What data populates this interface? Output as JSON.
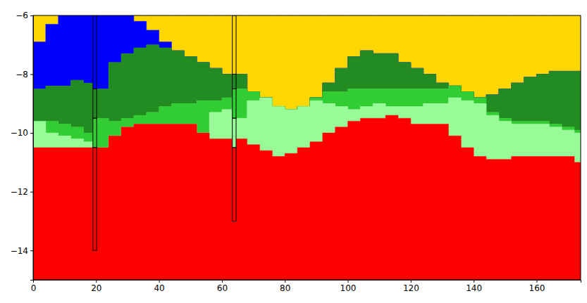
{
  "chart_data": {
    "type": "area",
    "xlim": [
      0,
      174
    ],
    "ylim": [
      -15,
      -6
    ],
    "xticks": [
      0,
      20,
      40,
      60,
      80,
      100,
      120,
      140,
      160
    ],
    "yticks": [
      {
        "value": -14,
        "label": "−14"
      },
      {
        "value": -12,
        "label": "−12"
      },
      {
        "value": -10,
        "label": "−10"
      },
      {
        "value": -8,
        "label": "−8"
      },
      {
        "value": -6,
        "label": "−6"
      }
    ],
    "x": [
      0,
      4,
      8,
      12,
      16,
      20,
      24,
      28,
      32,
      36,
      40,
      44,
      48,
      52,
      56,
      60,
      64,
      68,
      72,
      76,
      80,
      84,
      88,
      92,
      96,
      100,
      104,
      108,
      112,
      116,
      120,
      124,
      128,
      132,
      136,
      140,
      144,
      148,
      152,
      156,
      160,
      164,
      168,
      172,
      174
    ],
    "series": [
      {
        "color": "#ffd700",
        "values": [
          -6.9,
          -6.3,
          -6,
          -6,
          -6,
          -6,
          -6,
          -6,
          -6.2,
          -6.5,
          -6.9,
          -7.2,
          -7.4,
          -7.6,
          -7.8,
          -8.0,
          -8.0,
          -8.6,
          -8.8,
          -9.1,
          -9.2,
          -9.1,
          -8.8,
          -8.3,
          -7.8,
          -7.4,
          -7.2,
          -7.3,
          -7.3,
          -7.6,
          -7.8,
          -8.0,
          -8.3,
          -8.4,
          -8.6,
          -8.8,
          -8.7,
          -8.5,
          -8.3,
          -8.1,
          -8.0,
          -7.9,
          -7.9,
          -7.9,
          -7.9
        ]
      },
      {
        "color": "#0000ff",
        "values": [
          -8.5,
          -8.4,
          -8.4,
          -8.2,
          -8.3,
          -8.5,
          -7.6,
          -7.3,
          -7.1,
          -7.0,
          -7.1,
          -7.2,
          -7.4,
          -7.6,
          -7.8,
          -8.0,
          -8.0,
          -8.6,
          -8.8,
          -9.1,
          -9.2,
          -9.1,
          -8.8,
          -8.3,
          -7.8,
          -7.4,
          -7.2,
          -7.3,
          -7.3,
          -7.6,
          -7.8,
          -8.0,
          -8.3,
          -8.4,
          -8.6,
          -8.8,
          -8.7,
          -8.5,
          -8.3,
          -8.1,
          -8.0,
          -7.9,
          -7.9,
          -7.9,
          -7.9
        ]
      },
      {
        "color": "#228b22",
        "values": [
          -9.6,
          -9.6,
          -9.7,
          -9.8,
          -10.0,
          -9.5,
          -9.6,
          -9.5,
          -9.4,
          -9.3,
          -9.1,
          -9.0,
          -9.0,
          -8.9,
          -8.9,
          -8.8,
          -8.5,
          -8.6,
          -8.8,
          -9.1,
          -9.2,
          -9.1,
          -8.8,
          -8.6,
          -8.6,
          -8.5,
          -8.5,
          -8.5,
          -8.5,
          -8.5,
          -8.5,
          -8.5,
          -8.5,
          -8.4,
          -8.6,
          -8.8,
          -9.3,
          -9.5,
          -9.6,
          -9.6,
          -9.6,
          -9.7,
          -9.8,
          -9.9,
          -10.0
        ]
      },
      {
        "color": "#32cd32",
        "values": [
          -9.6,
          -10.0,
          -10.1,
          -10.2,
          -10.3,
          -10.5,
          -10.1,
          -9.8,
          -9.7,
          -9.7,
          -9.7,
          -9.7,
          -9.7,
          -10.0,
          -9.3,
          -9.2,
          -9.5,
          -8.9,
          -8.8,
          -9.1,
          -9.2,
          -9.1,
          -8.9,
          -9.0,
          -9.1,
          -9.2,
          -9.1,
          -9.0,
          -9.1,
          -9.1,
          -9.1,
          -9.0,
          -9.0,
          -8.8,
          -8.9,
          -9.0,
          -9.4,
          -9.6,
          -9.7,
          -9.7,
          -9.7,
          -9.8,
          -9.9,
          -10.0,
          -10.1
        ]
      },
      {
        "color": "#98fb98",
        "values": [
          -10.5,
          -10.5,
          -10.5,
          -10.5,
          -10.5,
          -10.5,
          -10.1,
          -9.8,
          -9.7,
          -9.7,
          -9.7,
          -9.7,
          -9.7,
          -10.0,
          -10.2,
          -10.2,
          -10.2,
          -10.4,
          -10.6,
          -10.8,
          -10.7,
          -10.5,
          -10.3,
          -10.0,
          -9.8,
          -9.6,
          -9.5,
          -9.5,
          -9.4,
          -9.5,
          -9.7,
          -9.7,
          -9.7,
          -10.1,
          -10.5,
          -10.8,
          -10.9,
          -10.9,
          -10.8,
          -10.8,
          -10.8,
          -10.8,
          -10.8,
          -11.0,
          -11.0
        ]
      },
      {
        "color": "#ff0000",
        "values": [
          -15,
          -15,
          -15,
          -15,
          -15,
          -15,
          -15,
          -15,
          -15,
          -15,
          -15,
          -15,
          -15,
          -15,
          -15,
          -15,
          -15,
          -15,
          -15,
          -15,
          -15,
          -15,
          -15,
          -15,
          -15,
          -15,
          -15,
          -15,
          -15,
          -15,
          -15,
          -15,
          -15,
          -15,
          -15,
          -15,
          -15,
          -15,
          -15,
          -15,
          -15,
          -15,
          -15,
          -15,
          -15
        ]
      }
    ],
    "boreholes": [
      {
        "x0": 19,
        "x1": 20.2,
        "intervals": [
          {
            "top": -6,
            "bottom": -8.5,
            "color": "#0000ff"
          },
          {
            "top": -8.5,
            "bottom": -9.5,
            "color": "#228b22"
          },
          {
            "top": -9.5,
            "bottom": -10.5,
            "color": "#32cd32"
          },
          {
            "top": -10.5,
            "bottom": -14,
            "color": "#ff0000"
          }
        ]
      },
      {
        "x0": 63.3,
        "x1": 64.5,
        "intervals": [
          {
            "top": -6,
            "bottom": -8,
            "color": "#ffd700"
          },
          {
            "top": -8,
            "bottom": -8.5,
            "color": "#228b22"
          },
          {
            "top": -8.5,
            "bottom": -9.5,
            "color": "#32cd32"
          },
          {
            "top": -9.5,
            "bottom": -10.5,
            "color": "#98fb98"
          },
          {
            "top": -10.5,
            "bottom": -13,
            "color": "#ff0000"
          }
        ]
      }
    ]
  }
}
